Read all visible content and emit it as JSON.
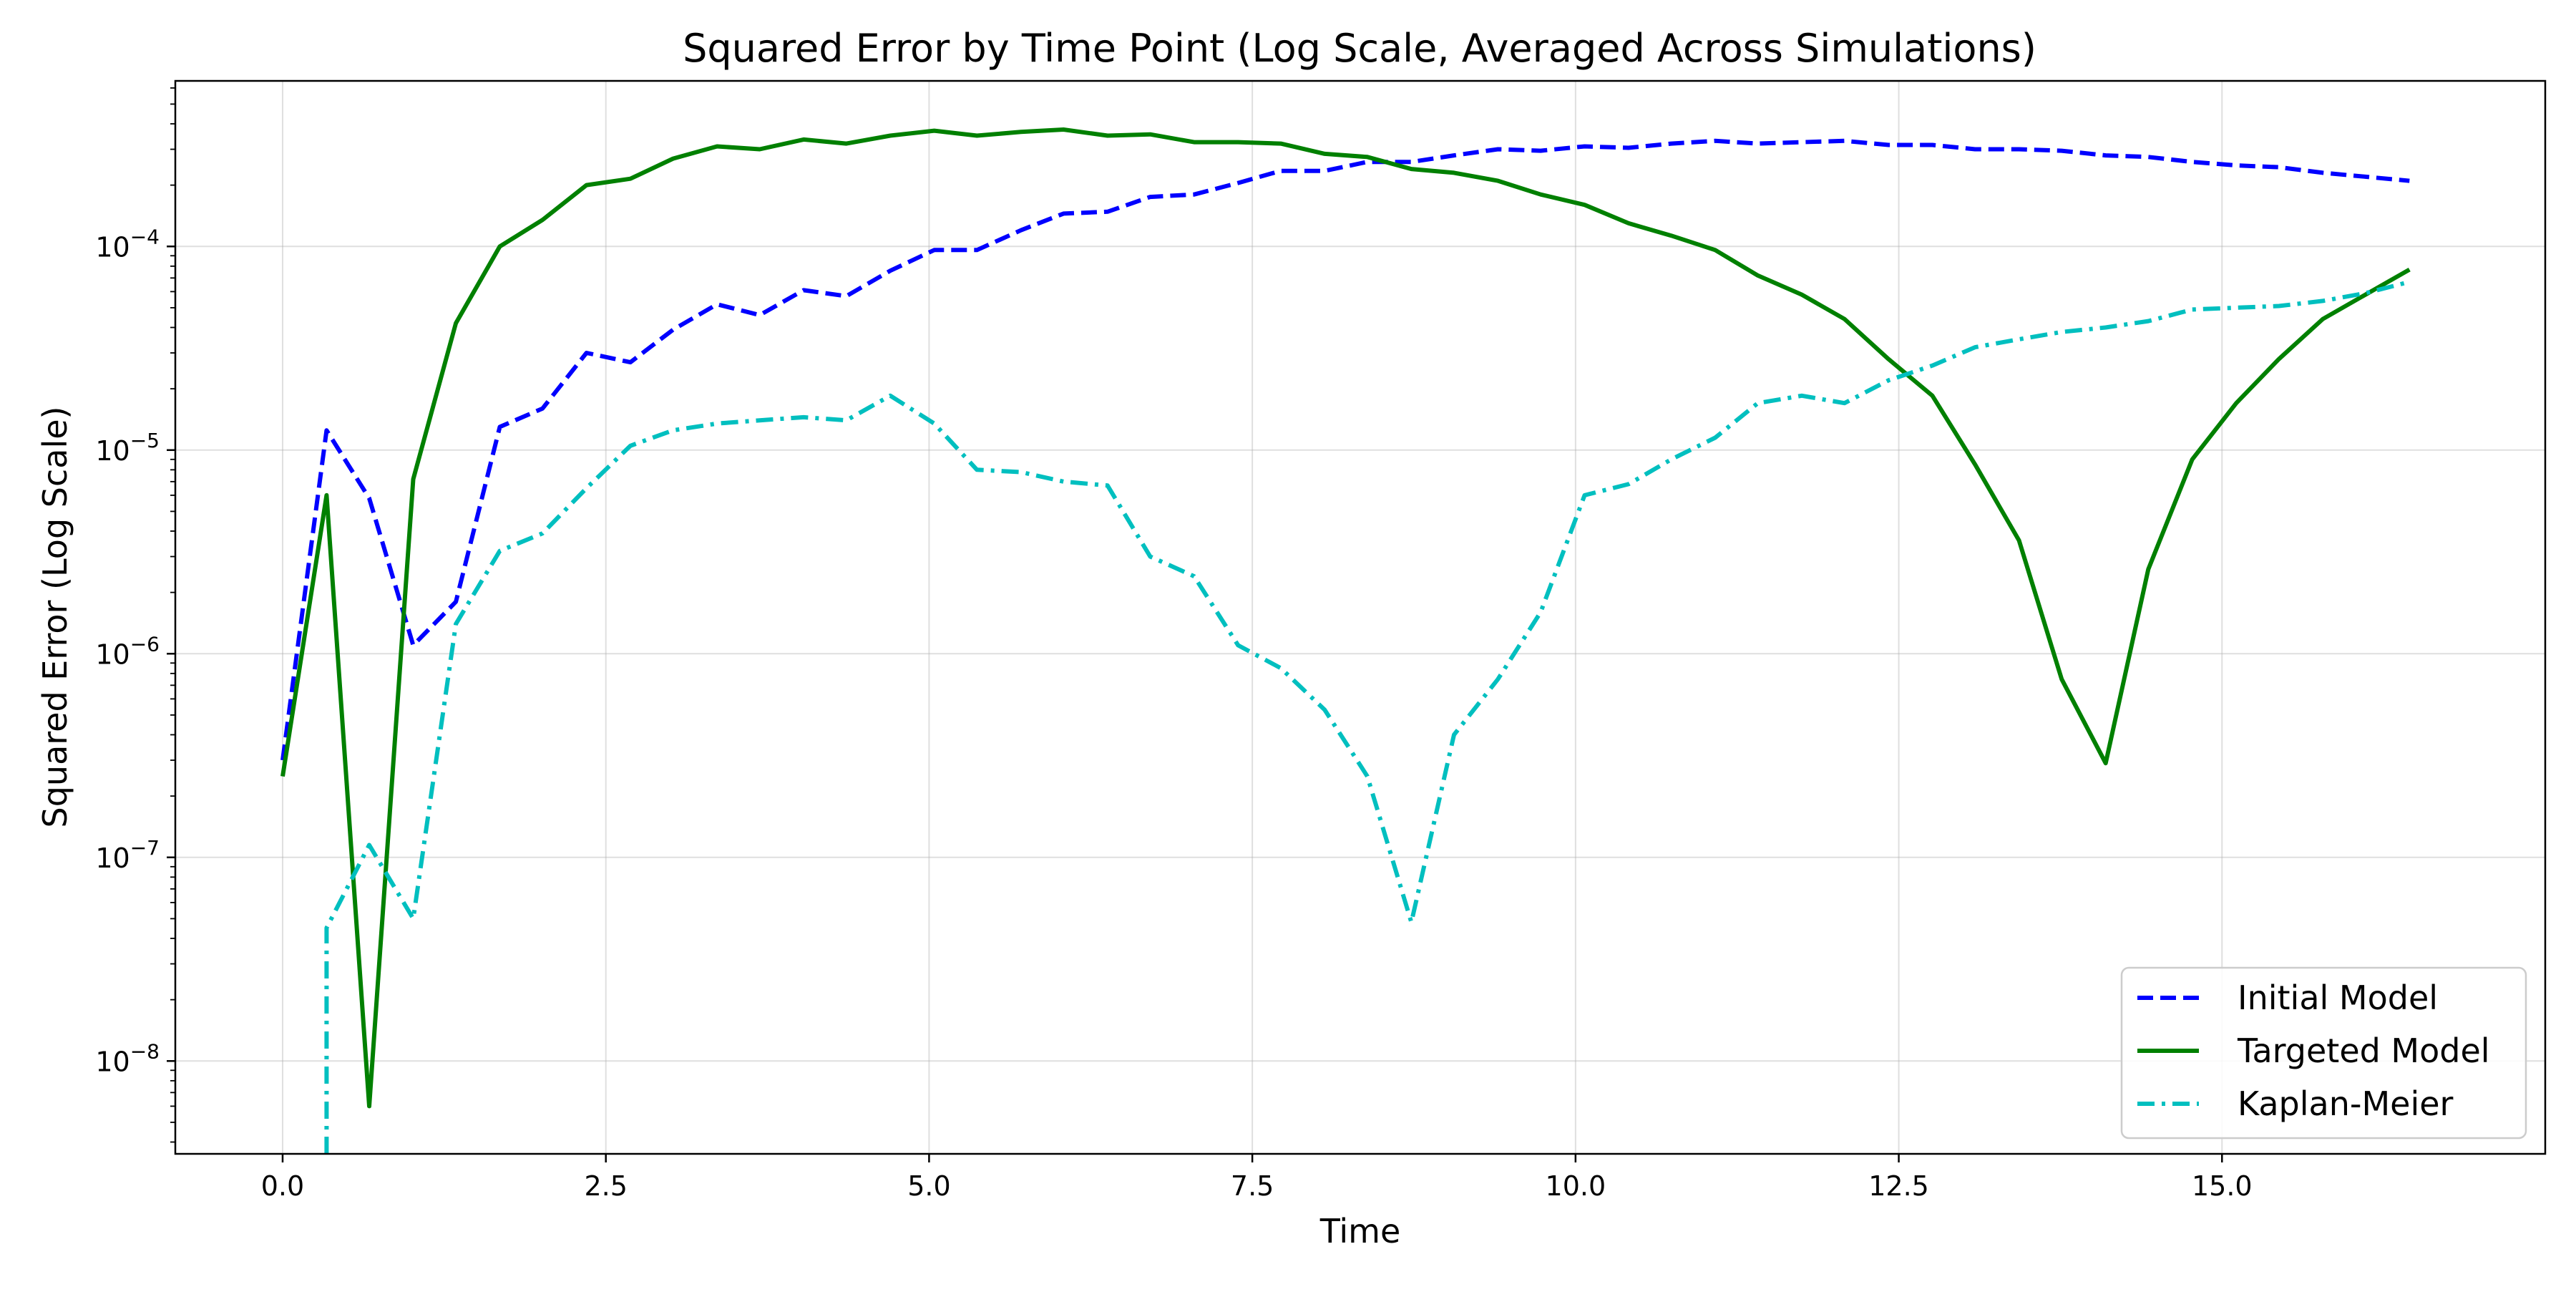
{
  "chart_data": {
    "type": "line",
    "title": "Squared Error by Time Point (Log Scale, Averaged Across Simulations)",
    "xlabel": "Time",
    "ylabel": "Squared Error (Log Scale)",
    "x_scale": "linear",
    "y_scale": "log",
    "xlim": [
      -0.83,
      17.5
    ],
    "ylim": [
      3.5e-09,
      0.00065
    ],
    "grid": true,
    "legend_position": "lower right",
    "x_ticks": [
      {
        "value": 0.0,
        "label": "0.0"
      },
      {
        "value": 2.5,
        "label": "2.5"
      },
      {
        "value": 5.0,
        "label": "5.0"
      },
      {
        "value": 7.5,
        "label": "7.5"
      },
      {
        "value": 10.0,
        "label": "10.0"
      },
      {
        "value": 12.5,
        "label": "12.5"
      },
      {
        "value": 15.0,
        "label": "15.0"
      }
    ],
    "y_ticks": [
      {
        "value": 1e-08,
        "base": "10",
        "exp": "−8"
      },
      {
        "value": 1e-07,
        "base": "10",
        "exp": "−7"
      },
      {
        "value": 1e-06,
        "base": "10",
        "exp": "−6"
      },
      {
        "value": 1e-05,
        "base": "10",
        "exp": "−5"
      },
      {
        "value": 0.0001,
        "base": "10",
        "exp": "−4"
      }
    ],
    "series": [
      {
        "name": "Initial Model",
        "color": "#0000ff",
        "style": "dashed",
        "x": [
          0.0,
          0.34,
          0.67,
          1.01,
          1.34,
          1.68,
          2.01,
          2.35,
          2.69,
          3.02,
          3.36,
          3.69,
          4.03,
          4.36,
          4.7,
          5.04,
          5.37,
          5.71,
          6.04,
          6.38,
          6.71,
          7.05,
          7.39,
          7.72,
          8.06,
          8.39,
          8.73,
          9.06,
          9.4,
          9.73,
          10.07,
          10.41,
          10.74,
          11.08,
          11.41,
          11.75,
          12.08,
          12.42,
          12.76,
          13.09,
          13.43,
          13.76,
          14.1,
          14.43,
          14.77,
          15.11,
          15.44,
          15.78,
          16.11,
          16.45
        ],
        "y": [
          3e-07,
          1.25e-05,
          5.8e-06,
          1.1e-06,
          1.8e-06,
          1.3e-05,
          1.6e-05,
          3e-05,
          2.7e-05,
          3.9e-05,
          5.2e-05,
          4.6e-05,
          6.1e-05,
          5.7e-05,
          7.6e-05,
          9.6e-05,
          9.6e-05,
          0.00012,
          0.000145,
          0.000148,
          0.000175,
          0.00018,
          0.000205,
          0.000235,
          0.000235,
          0.00026,
          0.00026,
          0.00028,
          0.0003,
          0.000295,
          0.00031,
          0.000305,
          0.00032,
          0.00033,
          0.00032,
          0.000325,
          0.00033,
          0.000315,
          0.000315,
          0.0003,
          0.0003,
          0.000295,
          0.00028,
          0.000275,
          0.00026,
          0.00025,
          0.000245,
          0.00023,
          0.00022,
          0.00021
        ]
      },
      {
        "name": "Targeted Model",
        "color": "#008000",
        "style": "solid",
        "x": [
          0.0,
          0.34,
          0.67,
          1.01,
          1.34,
          1.68,
          2.01,
          2.35,
          2.69,
          3.02,
          3.36,
          3.69,
          4.03,
          4.36,
          4.7,
          5.04,
          5.37,
          5.71,
          6.04,
          6.38,
          6.71,
          7.05,
          7.39,
          7.72,
          8.06,
          8.39,
          8.73,
          9.06,
          9.4,
          9.73,
          10.07,
          10.41,
          10.74,
          11.08,
          11.41,
          11.75,
          12.08,
          12.42,
          12.76,
          13.09,
          13.43,
          13.76,
          14.1,
          14.43,
          14.77,
          15.11,
          15.44,
          15.78,
          16.11,
          16.45
        ],
        "y": [
          2.5e-07,
          6e-06,
          6e-09,
          7.2e-06,
          4.2e-05,
          0.0001,
          0.000135,
          0.0002,
          0.000215,
          0.00027,
          0.00031,
          0.0003,
          0.000335,
          0.00032,
          0.00035,
          0.00037,
          0.00035,
          0.000365,
          0.000375,
          0.00035,
          0.000355,
          0.000325,
          0.000325,
          0.00032,
          0.000285,
          0.000275,
          0.00024,
          0.00023,
          0.00021,
          0.00018,
          0.00016,
          0.00013,
          0.000113,
          9.6e-05,
          7.2e-05,
          5.8e-05,
          4.4e-05,
          2.8e-05,
          1.85e-05,
          8.5e-06,
          3.6e-06,
          7.5e-07,
          2.9e-07,
          2.6e-06,
          9e-06,
          1.7e-05,
          2.8e-05,
          4.4e-05,
          5.8e-05,
          7.7e-05
        ]
      },
      {
        "name": "Kaplan-Meier",
        "color": "#00bfbf",
        "style": "dashdot",
        "x": [
          0.34,
          0.34,
          0.67,
          1.01,
          1.34,
          1.68,
          2.01,
          2.35,
          2.69,
          3.02,
          3.36,
          3.69,
          4.03,
          4.36,
          4.7,
          5.04,
          5.37,
          5.71,
          6.04,
          6.38,
          6.71,
          7.05,
          7.39,
          7.72,
          8.06,
          8.39,
          8.73,
          9.06,
          9.4,
          9.73,
          10.07,
          10.41,
          10.74,
          11.08,
          11.41,
          11.75,
          12.08,
          12.42,
          12.76,
          13.09,
          13.43,
          13.76,
          14.1,
          14.43,
          14.77,
          15.11,
          15.44,
          15.78,
          16.11,
          16.45
        ],
        "y": [
          3.5e-09,
          4.5e-08,
          1.15e-07,
          5e-08,
          1.4e-06,
          3.2e-06,
          3.9e-06,
          6.5e-06,
          1.05e-05,
          1.25e-05,
          1.35e-05,
          1.4e-05,
          1.45e-05,
          1.4e-05,
          1.85e-05,
          1.35e-05,
          8e-06,
          7.8e-06,
          7e-06,
          6.7e-06,
          3e-06,
          2.4e-06,
          1.1e-06,
          8.5e-07,
          5.3e-07,
          2.5e-07,
          4.8e-08,
          4e-07,
          7.5e-07,
          1.6e-06,
          6e-06,
          6.8e-06,
          9e-06,
          1.15e-05,
          1.7e-05,
          1.85e-05,
          1.7e-05,
          2.2e-05,
          2.6e-05,
          3.2e-05,
          3.5e-05,
          3.8e-05,
          4e-05,
          4.3e-05,
          4.9e-05,
          5e-05,
          5.1e-05,
          5.4e-05,
          5.9e-05,
          6.7e-05
        ]
      }
    ]
  }
}
